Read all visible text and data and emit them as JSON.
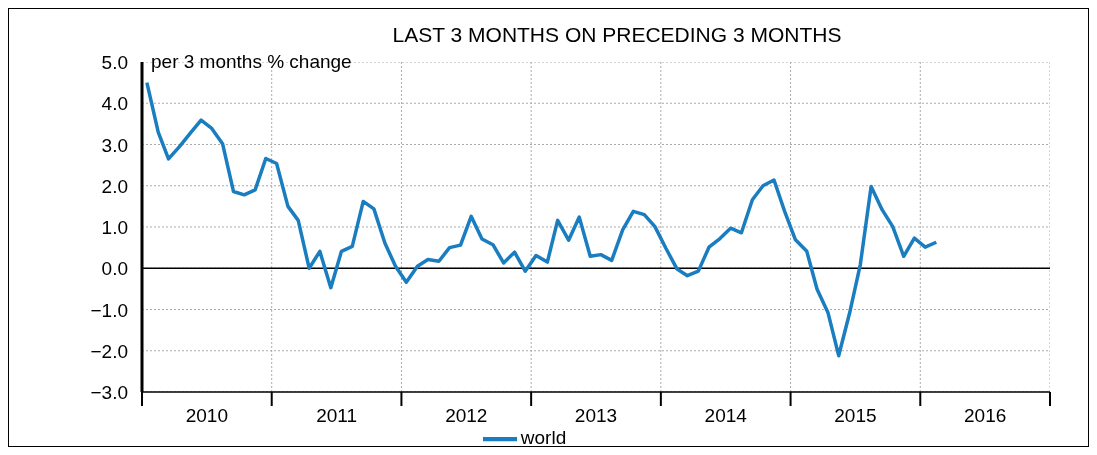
{
  "chart_data": {
    "type": "line",
    "title": "LAST 3 MONTHS ON PRECEDING 3 MONTHS",
    "ylabel": "per 3 months % change",
    "x": [
      "2010-01-15",
      "2010-02-15",
      "2010-03-15",
      "2010-04-15",
      "2010-05-15",
      "2010-06-15",
      "2010-07-15",
      "2010-08-15",
      "2010-09-15",
      "2010-10-15",
      "2010-11-15",
      "2010-12-15",
      "2011-01-15",
      "2011-02-15",
      "2011-03-15",
      "2011-04-15",
      "2011-05-15",
      "2011-06-15",
      "2011-07-15",
      "2011-08-15",
      "2011-09-15",
      "2011-10-15",
      "2011-11-15",
      "2011-12-15",
      "2012-01-15",
      "2012-02-15",
      "2012-03-15",
      "2012-04-15",
      "2012-05-15",
      "2012-06-15",
      "2012-07-15",
      "2012-08-15",
      "2012-09-15",
      "2012-10-15",
      "2012-11-15",
      "2012-12-15",
      "2013-01-15",
      "2013-02-15",
      "2013-03-15",
      "2013-04-15",
      "2013-05-15",
      "2013-06-15",
      "2013-07-15",
      "2013-08-15",
      "2013-09-15",
      "2013-10-15",
      "2013-11-15",
      "2013-12-15",
      "2014-01-15",
      "2014-02-15",
      "2014-03-15",
      "2014-04-15",
      "2014-05-15",
      "2014-06-15",
      "2014-07-15",
      "2014-08-15",
      "2014-09-15",
      "2014-10-15",
      "2014-11-15",
      "2014-12-15",
      "2015-01-15",
      "2015-02-15",
      "2015-03-15",
      "2015-04-15",
      "2015-05-15",
      "2015-06-15",
      "2015-07-15",
      "2015-08-15",
      "2015-09-15",
      "2015-10-15",
      "2015-11-15",
      "2015-12-15",
      "2016-01-15",
      "2016-02-15"
    ],
    "series": [
      {
        "name": "world",
        "color": "#1a7dc0",
        "values": [
          4.5,
          3.3,
          2.65,
          2.95,
          3.27,
          3.59,
          3.39,
          3.02,
          1.86,
          1.78,
          1.9,
          2.66,
          2.54,
          1.5,
          1.16,
          0.0,
          0.41,
          -0.47,
          0.41,
          0.53,
          1.62,
          1.44,
          0.61,
          0.05,
          -0.34,
          0.05,
          0.21,
          0.17,
          0.5,
          0.56,
          1.26,
          0.71,
          0.57,
          0.13,
          0.39,
          -0.07,
          0.31,
          0.15,
          1.16,
          0.68,
          1.24,
          0.29,
          0.33,
          0.19,
          0.93,
          1.38,
          1.3,
          1.01,
          0.49,
          -0.02,
          -0.18,
          -0.07,
          0.51,
          0.72,
          0.97,
          0.86,
          1.66,
          2.0,
          2.14,
          1.38,
          0.69,
          0.41,
          -0.51,
          -1.08,
          -2.12,
          -1.08,
          0.09,
          1.98,
          1.42,
          1.01,
          0.29,
          0.73,
          0.51,
          0.63
        ]
      }
    ],
    "xlim": [
      "2010",
      "2017"
    ],
    "xticks": [
      {
        "value": "2010",
        "label": null
      },
      {
        "value": "2010-07-01",
        "label": "2010"
      },
      {
        "value": "2011",
        "label": null
      },
      {
        "value": "2011-07-01",
        "label": "2011"
      },
      {
        "value": "2012",
        "label": null
      },
      {
        "value": "2012-07-01",
        "label": "2012"
      },
      {
        "value": "2013",
        "label": null
      },
      {
        "value": "2013-07-01",
        "label": "2013"
      },
      {
        "value": "2014",
        "label": null
      },
      {
        "value": "2014-07-01",
        "label": "2014"
      },
      {
        "value": "2015",
        "label": null
      },
      {
        "value": "2015-07-01",
        "label": "2015"
      },
      {
        "value": "2016",
        "label": null
      },
      {
        "value": "2016-07-01",
        "label": "2016"
      },
      {
        "value": "2017",
        "label": null
      }
    ],
    "ylim": [
      -3,
      5
    ],
    "yticks": [
      {
        "value": 5,
        "label": "5.0"
      },
      {
        "value": 4,
        "label": "4.0"
      },
      {
        "value": 3,
        "label": "3.0"
      },
      {
        "value": 2,
        "label": "2.0"
      },
      {
        "value": 1,
        "label": "1.0"
      },
      {
        "value": 0,
        "label": "0.0"
      },
      {
        "value": -1,
        "label": "−1.0"
      },
      {
        "value": -2,
        "label": "−2.0"
      },
      {
        "value": -3,
        "label": "−3.0"
      }
    ],
    "ref_lines": [
      {
        "axis": "y",
        "value": 0,
        "color": "#000000"
      }
    ],
    "grid": true,
    "legend": "bottom",
    "marker": "none",
    "line_style": "solid"
  }
}
